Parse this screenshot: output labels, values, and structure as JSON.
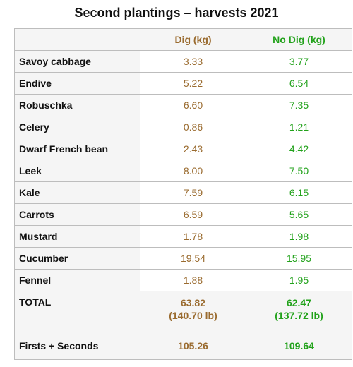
{
  "title": "Second plantings – harvests 2021",
  "columns": {
    "crop": "",
    "dig": "Dig (kg)",
    "no_dig": "No Dig (kg)"
  },
  "rows": [
    {
      "crop": "Savoy cabbage",
      "dig": "3.33",
      "no_dig": "3.77"
    },
    {
      "crop": "Endive",
      "dig": "5.22",
      "no_dig": "6.54"
    },
    {
      "crop": "Robuschka",
      "dig": "6.60",
      "no_dig": "7.35"
    },
    {
      "crop": "Celery",
      "dig": "0.86",
      "no_dig": "1.21"
    },
    {
      "crop": "Dwarf French bean",
      "dig": "2.43",
      "no_dig": "4.42"
    },
    {
      "crop": "Leek",
      "dig": "8.00",
      "no_dig": "7.50"
    },
    {
      "crop": "Kale",
      "dig": "7.59",
      "no_dig": "6.15"
    },
    {
      "crop": "Carrots",
      "dig": "6.59",
      "no_dig": "5.65"
    },
    {
      "crop": "Mustard",
      "dig": "1.78",
      "no_dig": "1.98"
    },
    {
      "crop": "Cucumber",
      "dig": "19.54",
      "no_dig": "15.95"
    },
    {
      "crop": "Fennel",
      "dig": "1.88",
      "no_dig": "1.95"
    }
  ],
  "total": {
    "label": "TOTAL",
    "dig_kg": "63.82",
    "dig_lb": "(140.70 lb)",
    "no_dig_kg": "62.47",
    "no_dig_lb": "(137.72 lb)"
  },
  "firsts_seconds": {
    "label": "Firsts + Seconds",
    "dig": "105.26",
    "no_dig": "109.64"
  },
  "colors": {
    "dig": "#9a6b2f",
    "no_dig": "#22a21b"
  }
}
